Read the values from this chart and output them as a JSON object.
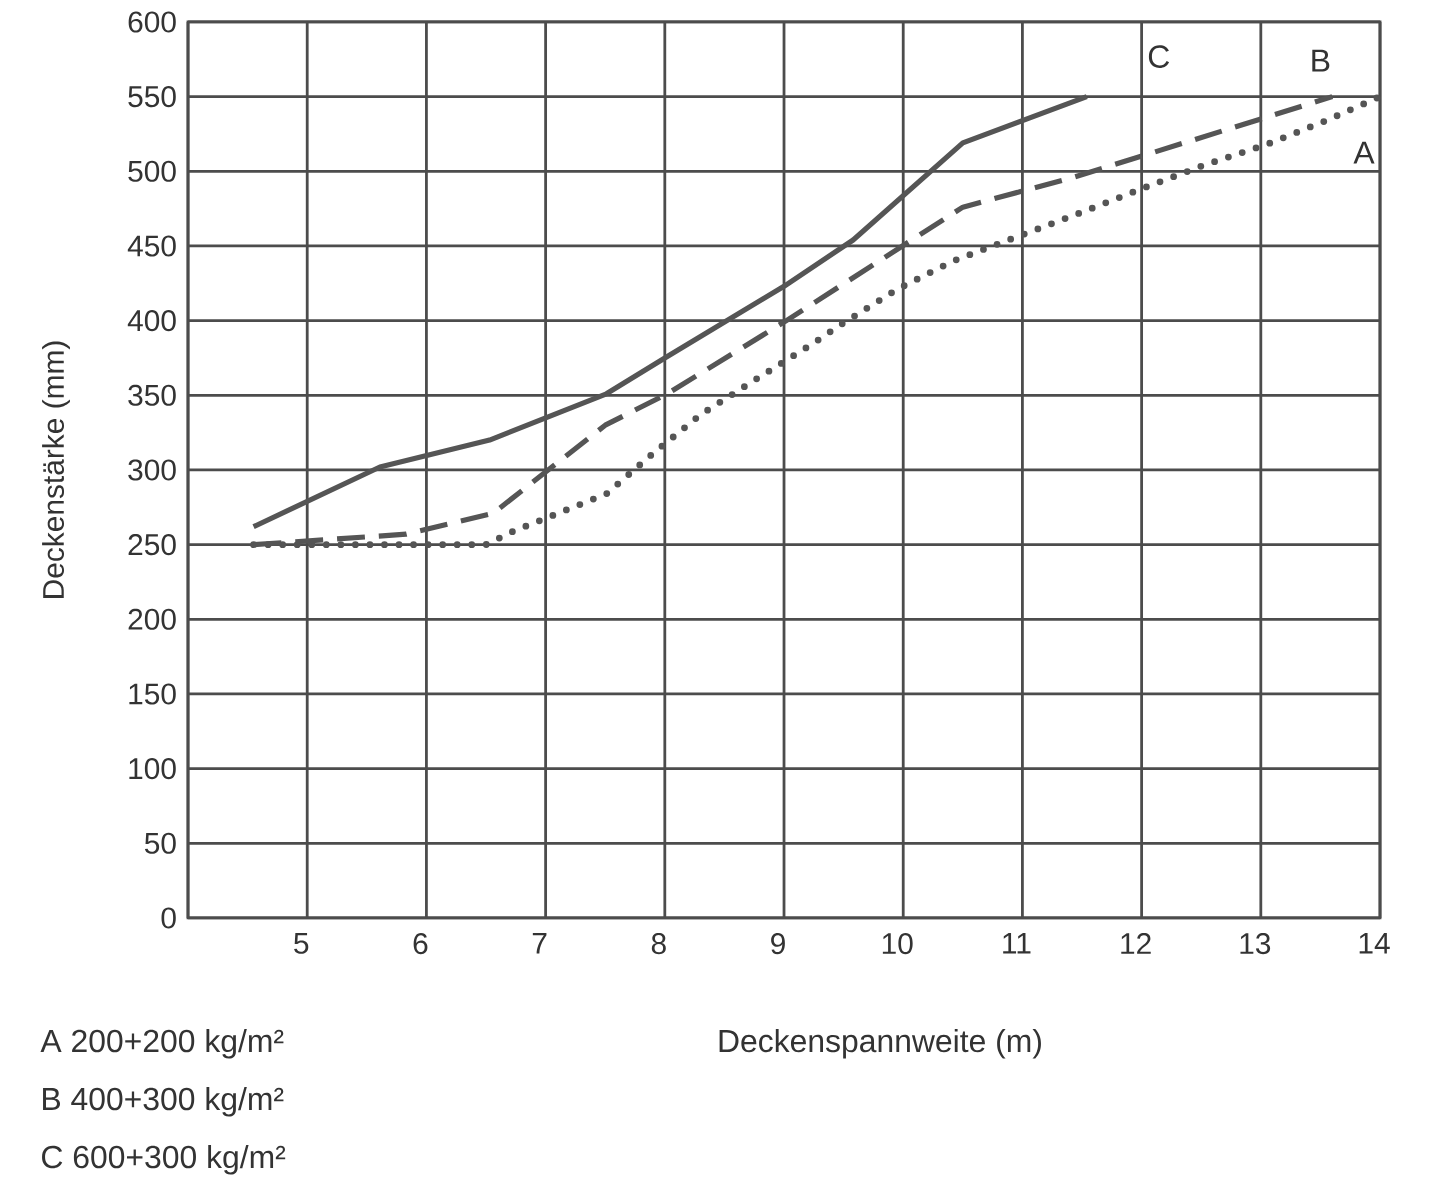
{
  "chart_data": {
    "type": "line",
    "xlabel": "Deckenspannweite (m)",
    "ylabel": "Deckenstärke (mm)",
    "xlim": [
      4,
      14
    ],
    "ylim": [
      0,
      600
    ],
    "xticks": [
      {
        "value": 4,
        "label": null
      },
      5,
      6,
      7,
      8,
      9,
      10,
      11,
      12,
      13,
      14
    ],
    "yticks": [
      0,
      50,
      100,
      150,
      200,
      250,
      300,
      350,
      400,
      450,
      500,
      550,
      600
    ],
    "grid": true,
    "marker": "none",
    "series": [
      {
        "name": "A",
        "color": "#555555",
        "line_style": "dotted",
        "x": [
          4.55,
          5.0,
          5.5,
          6.0,
          6.5,
          6.73,
          6.98,
          7.51,
          7.9,
          8.3,
          8.77,
          9.25,
          9.47,
          9.95,
          10.42,
          10.95,
          11.48,
          11.99,
          12.52,
          13.05,
          13.55,
          14.0
        ],
        "values": [
          250,
          250,
          250,
          250,
          250,
          259,
          267,
          284,
          311,
          337,
          361,
          385,
          397,
          421,
          440,
          456,
          472,
          488,
          504,
          518,
          534,
          550
        ]
      },
      {
        "name": "B",
        "color": "#555555",
        "line_style": "dashed",
        "x": [
          4.55,
          5.83,
          6.56,
          7.5,
          8.02,
          9.02,
          10.5,
          11.43,
          13.6
        ],
        "values": [
          250,
          257,
          271,
          330,
          351,
          400,
          476,
          496,
          550
        ]
      },
      {
        "name": "C",
        "color": "#555555",
        "line_style": "solid",
        "x": [
          4.55,
          5.61,
          6.53,
          7.51,
          8.0,
          9.0,
          9.58,
          10.5,
          11.54
        ],
        "values": [
          262,
          302,
          320,
          351,
          375,
          423,
          454,
          519,
          550
        ]
      }
    ],
    "annotations": [
      "A 200+200 kg/m²",
      "B 400+300 kg/m²",
      "C 600+300 kg/m²"
    ]
  }
}
